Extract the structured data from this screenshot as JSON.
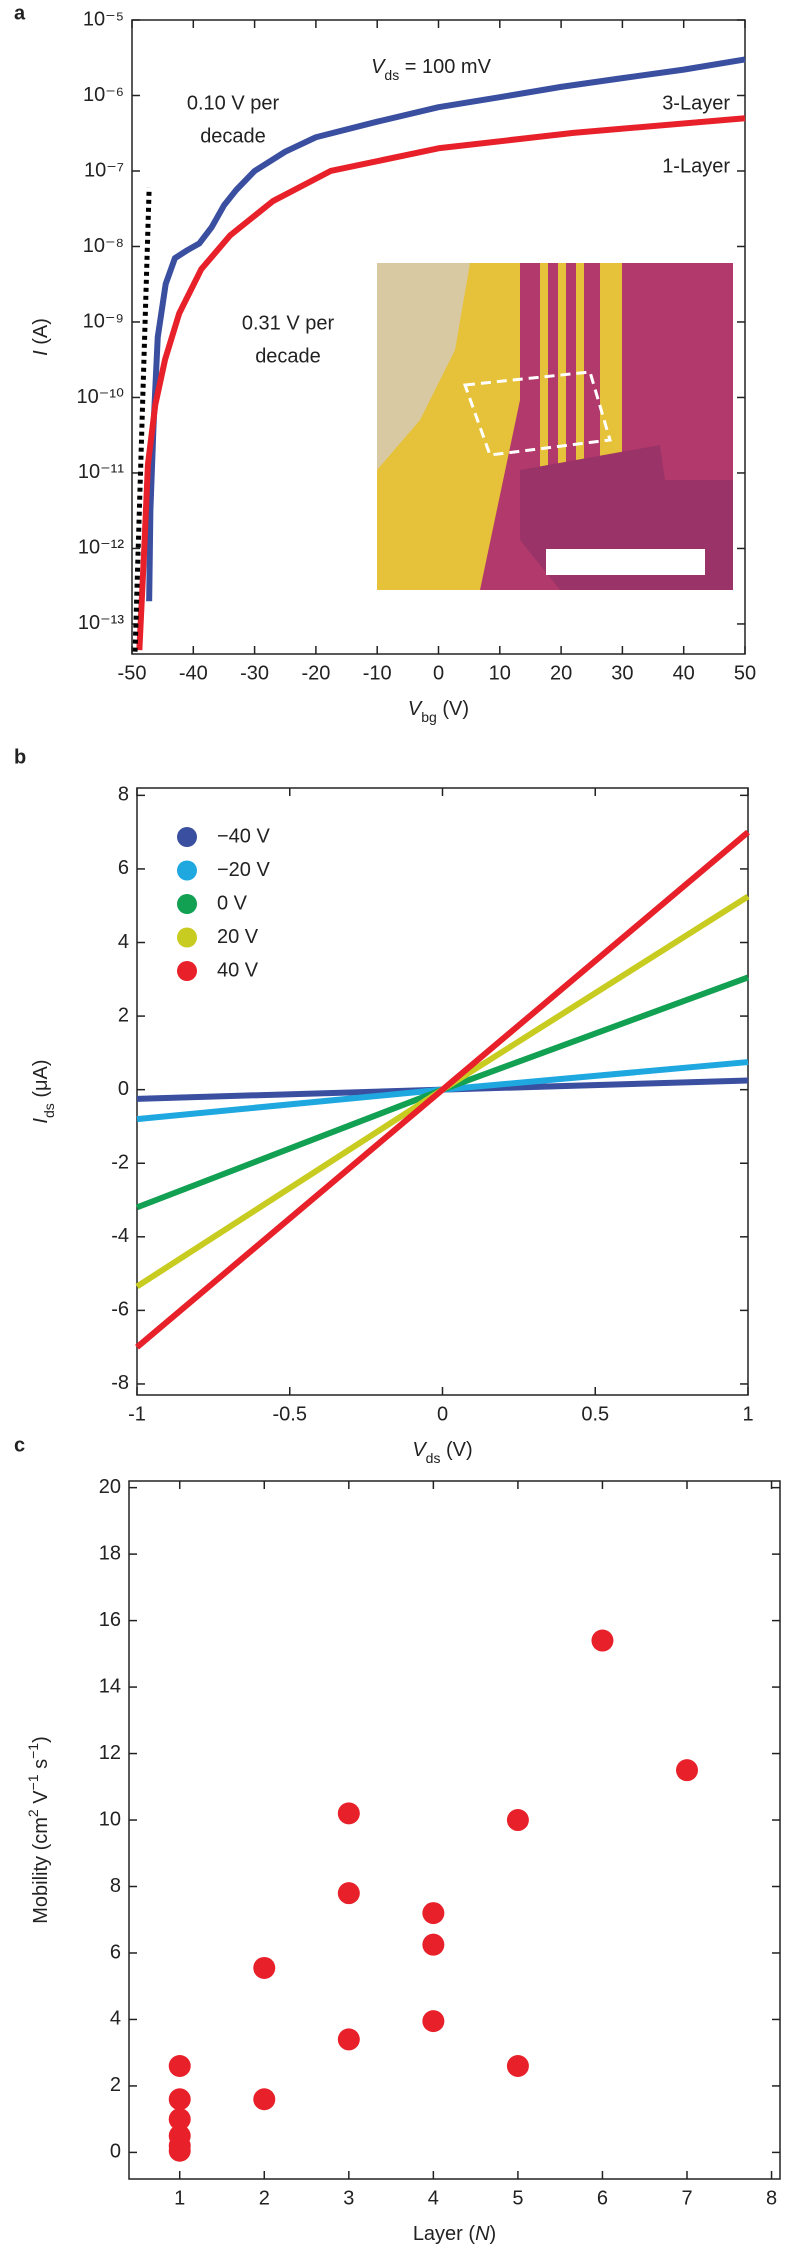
{
  "chart_data": [
    {
      "type": "line",
      "label": "a",
      "log_y": true,
      "x_label": [
        {
          "text": "V",
          "italic": true
        },
        {
          "text": "bg",
          "sub": true
        },
        {
          "text": " (V)"
        }
      ],
      "y_label": [
        {
          "text": "I",
          "italic": true
        },
        {
          "text": " (A)"
        }
      ],
      "xlim": [
        -50,
        50
      ],
      "xticks": [
        -50,
        -40,
        -30,
        -20,
        -10,
        0,
        10,
        20,
        30,
        40,
        50
      ],
      "ylim": [
        4e-14,
        1e-05
      ],
      "yticks": [
        {
          "value": 1e-13,
          "label": "10⁻¹³"
        },
        {
          "value": 1e-12,
          "label": "10⁻¹²"
        },
        {
          "value": 1e-11,
          "label": "10⁻¹¹"
        },
        {
          "value": 1e-10,
          "label": "10⁻¹⁰"
        },
        {
          "value": 1e-09,
          "label": "10⁻⁹"
        },
        {
          "value": 1e-08,
          "label": "10⁻⁸"
        },
        {
          "value": 1e-07,
          "label": "10⁻⁷"
        },
        {
          "value": 1e-06,
          "label": "10⁻⁶"
        },
        {
          "value": 1e-05,
          "label": "10⁻⁵"
        }
      ],
      "series": [
        {
          "color": "#3a4fa0",
          "x": [
            -47.2,
            -47,
            -46.5,
            -45.8,
            -44.5,
            -43,
            -41,
            -39,
            -37,
            -35,
            -33,
            -30,
            -25,
            -20,
            -10,
            0,
            10,
            20,
            30,
            40,
            50
          ],
          "values": [
            2e-13,
            3.2e-12,
            4e-11,
            6.3e-10,
            3.2e-09,
            7e-09,
            8.9e-09,
            1.1e-08,
            1.8e-08,
            3.5e-08,
            5.6e-08,
            1e-07,
            1.8e-07,
            2.8e-07,
            4.5e-07,
            7e-07,
            9.5e-07,
            1.3e-06,
            1.7e-06,
            2.2e-06,
            3e-06
          ]
        },
        {
          "color": "#e8202a",
          "x": [
            -48.8,
            -48,
            -47.4,
            -46.2,
            -44.6,
            -42.3,
            -38.7,
            -34,
            -27,
            -17.6,
            0,
            22,
            50
          ],
          "values": [
            4.5e-14,
            1e-12,
            1.3e-11,
            8e-11,
            3.2e-10,
            1.3e-09,
            5e-09,
            1.4e-08,
            4e-08,
            1e-07,
            2e-07,
            3.2e-07,
            5e-07
          ]
        },
        {
          "color": "#000000",
          "style": "dotted",
          "x": [
            -49.5,
            -47.2
          ],
          "values": [
            4.3e-14,
            6e-08
          ]
        }
      ],
      "annotations": [
        {
          "parts": [
            {
              "text": "V",
              "italic": true
            },
            {
              "text": "ds",
              "sub": true
            },
            {
              "text": " = 100 mV"
            }
          ],
          "color": "#000000"
        },
        {
          "lines": [
            "0.10 V per",
            "decade"
          ],
          "color": "#3a4fa0"
        },
        {
          "lines": [
            "3-Layer"
          ],
          "color": "#3a4fa0"
        },
        {
          "lines": [
            "1-Layer"
          ],
          "color": "#e8202a"
        },
        {
          "lines": [
            "0.31 V per",
            "decade"
          ],
          "color": "#e8202a"
        }
      ]
    },
    {
      "type": "line",
      "label": "b",
      "x_label": [
        {
          "text": "V",
          "italic": true
        },
        {
          "text": "ds",
          "sub": true
        },
        {
          "text": " (V)"
        }
      ],
      "y_label": [
        {
          "text": "I",
          "italic": true
        },
        {
          "text": "ds",
          "sub": true
        },
        {
          "text": " (μA)"
        }
      ],
      "xlim": [
        -1,
        1
      ],
      "xticks": [
        -1,
        -0.5,
        0,
        0.5,
        1
      ],
      "ylim": [
        -8.3,
        8.2
      ],
      "yticks": [
        -8,
        -6,
        -4,
        -2,
        0,
        2,
        4,
        6,
        8
      ],
      "legend": "upper left",
      "x": [
        -1,
        0,
        1
      ],
      "series": [
        {
          "name": "−40 V",
          "color": "#3a4fa0",
          "values": [
            -0.25,
            0,
            0.25
          ]
        },
        {
          "name": "−20 V",
          "color": "#1fa8e0",
          "values": [
            -0.8,
            0,
            0.75
          ]
        },
        {
          "name": "0  V",
          "color": "#12a052",
          "values": [
            -3.2,
            0,
            3.05
          ]
        },
        {
          "name": "20  V",
          "color": "#c8cc20",
          "values": [
            -5.35,
            0,
            5.25
          ]
        },
        {
          "name": "40  V",
          "color": "#e8202a",
          "values": [
            -7.0,
            0,
            7.0
          ]
        }
      ]
    },
    {
      "type": "scatter",
      "label": "c",
      "x_label": [
        {
          "text": "Layer ("
        },
        {
          "text": "N",
          "italic": true
        },
        {
          "text": ")"
        }
      ],
      "y_label": [
        {
          "text": "Mobility (cm"
        },
        {
          "text": "2",
          "sup": true
        },
        {
          "text": " V"
        },
        {
          "text": "−1",
          "sup": true
        },
        {
          "text": " s"
        },
        {
          "text": "−1",
          "sup": true
        },
        {
          "text": ")"
        }
      ],
      "xlim": [
        0.4,
        8.1
      ],
      "xticks": [
        1,
        2,
        3,
        4,
        5,
        6,
        7,
        8
      ],
      "ylim": [
        -0.8,
        20.2
      ],
      "yticks": [
        0,
        2,
        4,
        6,
        8,
        10,
        12,
        14,
        16,
        18,
        20
      ],
      "color": "#e8202a",
      "x": [
        1,
        1,
        1,
        1,
        1,
        1,
        2,
        2,
        3,
        3,
        3,
        4,
        4,
        4,
        5,
        5,
        6,
        7
      ],
      "values": [
        2.6,
        1.6,
        1.0,
        0.5,
        0.2,
        0.05,
        5.55,
        1.6,
        10.2,
        7.8,
        3.4,
        7.2,
        6.25,
        3.95,
        10,
        2.6,
        15.4,
        11.5
      ]
    }
  ]
}
